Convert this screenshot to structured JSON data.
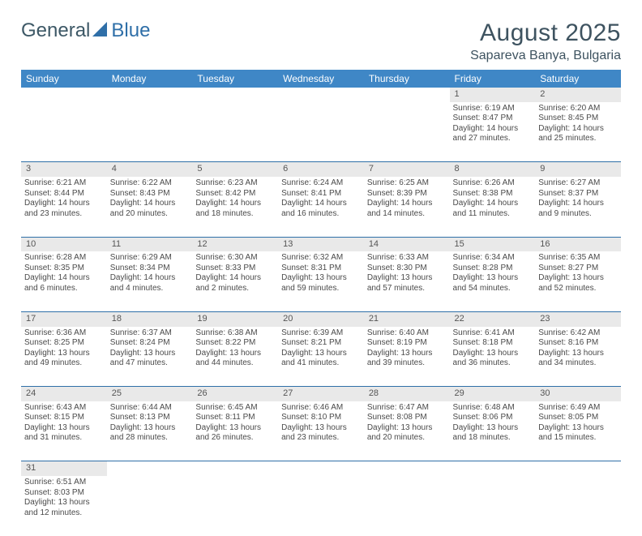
{
  "brand": {
    "part1": "General",
    "part2": "Blue"
  },
  "title": "August 2025",
  "location": "Sapareva Banya, Bulgaria",
  "colors": {
    "header_bg": "#3f87c6",
    "header_text": "#ffffff",
    "daynum_bg": "#e9e9e9",
    "rule": "#2f6fa8",
    "text": "#4a4a4a",
    "title_color": "#3e5360"
  },
  "weekdays": [
    "Sunday",
    "Monday",
    "Tuesday",
    "Wednesday",
    "Thursday",
    "Friday",
    "Saturday"
  ],
  "weeks": [
    {
      "nums": [
        "",
        "",
        "",
        "",
        "",
        "1",
        "2"
      ],
      "cells": [
        null,
        null,
        null,
        null,
        null,
        {
          "sunrise": "Sunrise: 6:19 AM",
          "sunset": "Sunset: 8:47 PM",
          "day1": "Daylight: 14 hours",
          "day2": "and 27 minutes."
        },
        {
          "sunrise": "Sunrise: 6:20 AM",
          "sunset": "Sunset: 8:45 PM",
          "day1": "Daylight: 14 hours",
          "day2": "and 25 minutes."
        }
      ]
    },
    {
      "nums": [
        "3",
        "4",
        "5",
        "6",
        "7",
        "8",
        "9"
      ],
      "cells": [
        {
          "sunrise": "Sunrise: 6:21 AM",
          "sunset": "Sunset: 8:44 PM",
          "day1": "Daylight: 14 hours",
          "day2": "and 23 minutes."
        },
        {
          "sunrise": "Sunrise: 6:22 AM",
          "sunset": "Sunset: 8:43 PM",
          "day1": "Daylight: 14 hours",
          "day2": "and 20 minutes."
        },
        {
          "sunrise": "Sunrise: 6:23 AM",
          "sunset": "Sunset: 8:42 PM",
          "day1": "Daylight: 14 hours",
          "day2": "and 18 minutes."
        },
        {
          "sunrise": "Sunrise: 6:24 AM",
          "sunset": "Sunset: 8:41 PM",
          "day1": "Daylight: 14 hours",
          "day2": "and 16 minutes."
        },
        {
          "sunrise": "Sunrise: 6:25 AM",
          "sunset": "Sunset: 8:39 PM",
          "day1": "Daylight: 14 hours",
          "day2": "and 14 minutes."
        },
        {
          "sunrise": "Sunrise: 6:26 AM",
          "sunset": "Sunset: 8:38 PM",
          "day1": "Daylight: 14 hours",
          "day2": "and 11 minutes."
        },
        {
          "sunrise": "Sunrise: 6:27 AM",
          "sunset": "Sunset: 8:37 PM",
          "day1": "Daylight: 14 hours",
          "day2": "and 9 minutes."
        }
      ]
    },
    {
      "nums": [
        "10",
        "11",
        "12",
        "13",
        "14",
        "15",
        "16"
      ],
      "cells": [
        {
          "sunrise": "Sunrise: 6:28 AM",
          "sunset": "Sunset: 8:35 PM",
          "day1": "Daylight: 14 hours",
          "day2": "and 6 minutes."
        },
        {
          "sunrise": "Sunrise: 6:29 AM",
          "sunset": "Sunset: 8:34 PM",
          "day1": "Daylight: 14 hours",
          "day2": "and 4 minutes."
        },
        {
          "sunrise": "Sunrise: 6:30 AM",
          "sunset": "Sunset: 8:33 PM",
          "day1": "Daylight: 14 hours",
          "day2": "and 2 minutes."
        },
        {
          "sunrise": "Sunrise: 6:32 AM",
          "sunset": "Sunset: 8:31 PM",
          "day1": "Daylight: 13 hours",
          "day2": "and 59 minutes."
        },
        {
          "sunrise": "Sunrise: 6:33 AM",
          "sunset": "Sunset: 8:30 PM",
          "day1": "Daylight: 13 hours",
          "day2": "and 57 minutes."
        },
        {
          "sunrise": "Sunrise: 6:34 AM",
          "sunset": "Sunset: 8:28 PM",
          "day1": "Daylight: 13 hours",
          "day2": "and 54 minutes."
        },
        {
          "sunrise": "Sunrise: 6:35 AM",
          "sunset": "Sunset: 8:27 PM",
          "day1": "Daylight: 13 hours",
          "day2": "and 52 minutes."
        }
      ]
    },
    {
      "nums": [
        "17",
        "18",
        "19",
        "20",
        "21",
        "22",
        "23"
      ],
      "cells": [
        {
          "sunrise": "Sunrise: 6:36 AM",
          "sunset": "Sunset: 8:25 PM",
          "day1": "Daylight: 13 hours",
          "day2": "and 49 minutes."
        },
        {
          "sunrise": "Sunrise: 6:37 AM",
          "sunset": "Sunset: 8:24 PM",
          "day1": "Daylight: 13 hours",
          "day2": "and 47 minutes."
        },
        {
          "sunrise": "Sunrise: 6:38 AM",
          "sunset": "Sunset: 8:22 PM",
          "day1": "Daylight: 13 hours",
          "day2": "and 44 minutes."
        },
        {
          "sunrise": "Sunrise: 6:39 AM",
          "sunset": "Sunset: 8:21 PM",
          "day1": "Daylight: 13 hours",
          "day2": "and 41 minutes."
        },
        {
          "sunrise": "Sunrise: 6:40 AM",
          "sunset": "Sunset: 8:19 PM",
          "day1": "Daylight: 13 hours",
          "day2": "and 39 minutes."
        },
        {
          "sunrise": "Sunrise: 6:41 AM",
          "sunset": "Sunset: 8:18 PM",
          "day1": "Daylight: 13 hours",
          "day2": "and 36 minutes."
        },
        {
          "sunrise": "Sunrise: 6:42 AM",
          "sunset": "Sunset: 8:16 PM",
          "day1": "Daylight: 13 hours",
          "day2": "and 34 minutes."
        }
      ]
    },
    {
      "nums": [
        "24",
        "25",
        "26",
        "27",
        "28",
        "29",
        "30"
      ],
      "cells": [
        {
          "sunrise": "Sunrise: 6:43 AM",
          "sunset": "Sunset: 8:15 PM",
          "day1": "Daylight: 13 hours",
          "day2": "and 31 minutes."
        },
        {
          "sunrise": "Sunrise: 6:44 AM",
          "sunset": "Sunset: 8:13 PM",
          "day1": "Daylight: 13 hours",
          "day2": "and 28 minutes."
        },
        {
          "sunrise": "Sunrise: 6:45 AM",
          "sunset": "Sunset: 8:11 PM",
          "day1": "Daylight: 13 hours",
          "day2": "and 26 minutes."
        },
        {
          "sunrise": "Sunrise: 6:46 AM",
          "sunset": "Sunset: 8:10 PM",
          "day1": "Daylight: 13 hours",
          "day2": "and 23 minutes."
        },
        {
          "sunrise": "Sunrise: 6:47 AM",
          "sunset": "Sunset: 8:08 PM",
          "day1": "Daylight: 13 hours",
          "day2": "and 20 minutes."
        },
        {
          "sunrise": "Sunrise: 6:48 AM",
          "sunset": "Sunset: 8:06 PM",
          "day1": "Daylight: 13 hours",
          "day2": "and 18 minutes."
        },
        {
          "sunrise": "Sunrise: 6:49 AM",
          "sunset": "Sunset: 8:05 PM",
          "day1": "Daylight: 13 hours",
          "day2": "and 15 minutes."
        }
      ]
    },
    {
      "nums": [
        "31",
        "",
        "",
        "",
        "",
        "",
        ""
      ],
      "cells": [
        {
          "sunrise": "Sunrise: 6:51 AM",
          "sunset": "Sunset: 8:03 PM",
          "day1": "Daylight: 13 hours",
          "day2": "and 12 minutes."
        },
        null,
        null,
        null,
        null,
        null,
        null
      ]
    }
  ]
}
